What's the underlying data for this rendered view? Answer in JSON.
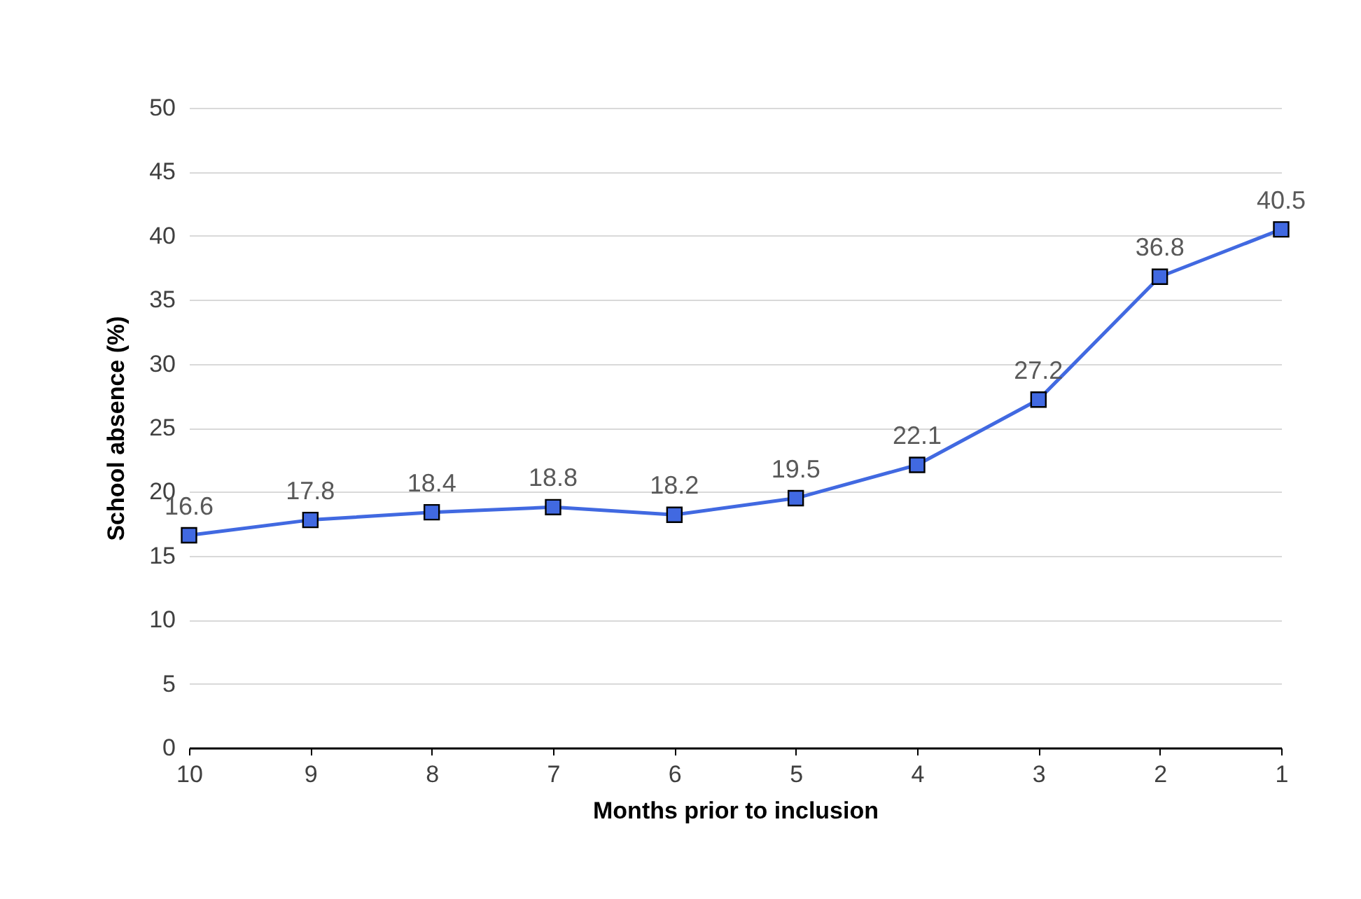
{
  "chart_data": {
    "type": "line",
    "xlabel": "Months prior to inclusion",
    "ylabel": "School absence (%)",
    "categories": [
      "10",
      "9",
      "8",
      "7",
      "6",
      "5",
      "4",
      "3",
      "2",
      "1"
    ],
    "series": [
      {
        "color": "#4169e1",
        "values": [
          16.6,
          17.8,
          18.4,
          18.8,
          18.2,
          19.5,
          22.1,
          27.2,
          36.8,
          40.5
        ]
      }
    ],
    "ylim": [
      0,
      50
    ],
    "yticks": [
      0,
      5,
      10,
      15,
      20,
      25,
      30,
      35,
      40,
      45,
      50
    ],
    "grid": "y",
    "marker": "square",
    "line_style": "solid",
    "data_labels": true
  }
}
